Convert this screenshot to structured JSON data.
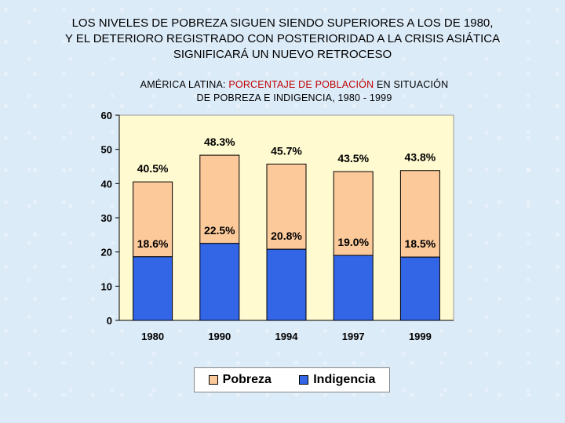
{
  "slide": {
    "title_lines": [
      "LOS NIVELES DE POBREZA SIGUEN SIENDO SUPERIORES A LOS DE 1980,",
      "Y EL DETERIORO REGISTRADO CON POSTERIORIDAD A LA CRISIS ASIÁTICA",
      "SIGNIFICARÁ UN NUEVO RETROCESO"
    ]
  },
  "chart_data": {
    "type": "bar",
    "title_parts": {
      "prefix": "AMÉRICA LATINA: ",
      "highlight": "PORCENTAJE DE POBLACIÓN",
      "suffix": " EN SITUACIÓN",
      "line2": "DE POBREZA E INDIGENCIA, 1980 - 1999"
    },
    "categories": [
      "1980",
      "1990",
      "1994",
      "1997",
      "1999"
    ],
    "series": [
      {
        "name": "Pobreza",
        "values": [
          40.5,
          48.3,
          45.7,
          43.5,
          43.8
        ],
        "labels": [
          "40.5%",
          "48.3%",
          "45.7%",
          "43.5%",
          "43.8%"
        ],
        "color": "#fbc99a"
      },
      {
        "name": "Indigencia",
        "values": [
          18.6,
          22.5,
          20.8,
          19.0,
          18.5
        ],
        "labels": [
          "18.6%",
          "22.5%",
          "20.8%",
          "19.0%",
          "18.5%"
        ],
        "color": "#3366e6"
      }
    ],
    "ylim": [
      0,
      60
    ],
    "yticks": [
      "0",
      "10",
      "20",
      "30",
      "40",
      "50",
      "60"
    ],
    "plot_background": "#fffad0",
    "grid": false,
    "legend_position": "bottom"
  }
}
